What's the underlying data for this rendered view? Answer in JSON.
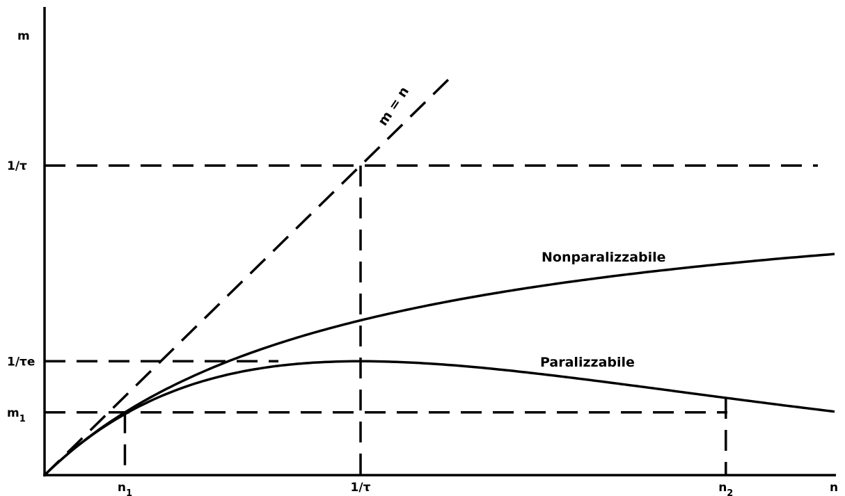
{
  "chart_data": {
    "type": "line",
    "title": "",
    "xlabel": "n",
    "ylabel": "m",
    "xlim": [
      0,
      2.5
    ],
    "ylim": [
      0,
      1.6
    ],
    "x_ticks": [
      {
        "value": 0.2543,
        "label": "n",
        "sub": "1"
      },
      {
        "value": 1.0,
        "label": "1/τ",
        "sub": ""
      },
      {
        "value": 2.1559,
        "label": "n",
        "sub": "2"
      }
    ],
    "y_ticks": [
      {
        "value": 1.0,
        "label": "1/τ",
        "sub": ""
      },
      {
        "value": 0.3679,
        "label": "1/τe",
        "sub": ""
      },
      {
        "value": 0.2028,
        "label": "m",
        "sub": "1"
      }
    ],
    "series": [
      {
        "name": "Nonparalizzabile",
        "function": "m = n / (1 + n·τ)",
        "x": [
          0,
          0.1,
          0.2543,
          0.5,
          0.75,
          1.0,
          1.25,
          1.5,
          1.75,
          2.0,
          2.25,
          2.5
        ],
        "y": [
          0,
          0.0909,
          0.2028,
          0.3333,
          0.4286,
          0.5,
          0.5556,
          0.6,
          0.6364,
          0.6667,
          0.6923,
          0.7143
        ]
      },
      {
        "name": "Paralizzabile",
        "function": "m = n·e^(−n·τ)",
        "x": [
          0,
          0.1,
          0.2543,
          0.5,
          0.75,
          1.0,
          1.25,
          1.5,
          1.75,
          2.0,
          2.1559,
          2.5
        ],
        "y": [
          0,
          0.0905,
          0.1971,
          0.3033,
          0.3543,
          0.3679,
          0.3581,
          0.3347,
          0.3041,
          0.2707,
          0.2494,
          0.2052
        ]
      },
      {
        "name": "m = n",
        "function": "m = n",
        "dashed": true,
        "x": [
          0,
          1.3
        ],
        "y": [
          0,
          1.3
        ]
      }
    ],
    "annotations": [
      "Nonparalizzabile",
      "Paralizzabile",
      "m = n"
    ],
    "grid": false,
    "legend": "none"
  }
}
